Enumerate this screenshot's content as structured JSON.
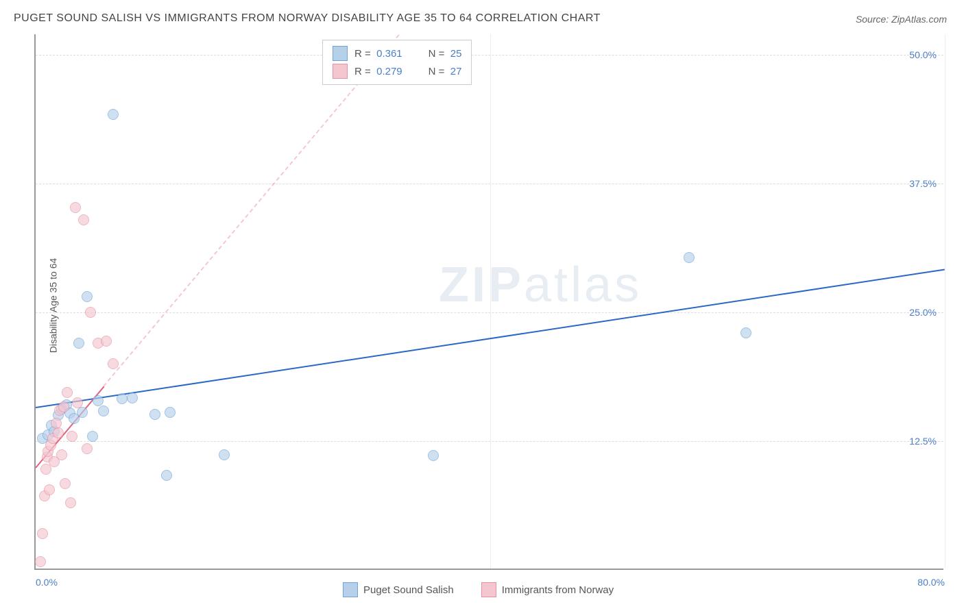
{
  "title": "PUGET SOUND SALISH VS IMMIGRANTS FROM NORWAY DISABILITY AGE 35 TO 64 CORRELATION CHART",
  "source": "Source: ZipAtlas.com",
  "y_axis_label": "Disability Age 35 to 64",
  "watermark_a": "ZIP",
  "watermark_b": "atlas",
  "chart": {
    "type": "scatter",
    "xlim": [
      0,
      80
    ],
    "ylim": [
      0,
      52
    ],
    "x_ticks": [
      0,
      80
    ],
    "x_tick_labels": [
      "0.0%",
      "80.0%"
    ],
    "y_ticks": [
      12.5,
      25.0,
      37.5,
      50.0
    ],
    "y_tick_labels": [
      "12.5%",
      "25.0%",
      "37.5%",
      "50.0%"
    ],
    "x_gridlines": [
      40,
      80
    ],
    "background_color": "#ffffff",
    "grid_color": "#dddddd",
    "axis_color": "#999999",
    "label_fontsize": 14,
    "title_fontsize": 16,
    "series": [
      {
        "name": "Puget Sound Salish",
        "marker_fill": "#b6d0ea",
        "marker_stroke": "#6fa3d9",
        "line_color": "#2968c5",
        "r": "0.361",
        "n": "25",
        "points": [
          [
            0.6,
            12.8
          ],
          [
            1.1,
            13.1
          ],
          [
            1.4,
            14.0
          ],
          [
            1.6,
            13.4
          ],
          [
            2.0,
            15.0
          ],
          [
            2.3,
            15.6
          ],
          [
            2.7,
            16.0
          ],
          [
            3.0,
            15.2
          ],
          [
            3.4,
            14.7
          ],
          [
            3.8,
            22.0
          ],
          [
            4.1,
            15.3
          ],
          [
            4.5,
            26.5
          ],
          [
            5.0,
            13.0
          ],
          [
            5.5,
            16.4
          ],
          [
            6.0,
            15.4
          ],
          [
            6.8,
            44.2
          ],
          [
            7.6,
            16.6
          ],
          [
            8.5,
            16.7
          ],
          [
            10.5,
            15.1
          ],
          [
            11.5,
            9.2
          ],
          [
            11.8,
            15.3
          ],
          [
            16.6,
            11.2
          ],
          [
            35.0,
            11.1
          ],
          [
            57.5,
            30.3
          ],
          [
            62.5,
            23.0
          ]
        ],
        "regression": {
          "x1": 0,
          "y1": 15.8,
          "x2": 80,
          "y2": 29.2,
          "dashed": false
        }
      },
      {
        "name": "Immigrants from Norway",
        "marker_fill": "#f4c7d0",
        "marker_stroke": "#e690a1",
        "line_color": "#e06280",
        "r": "0.279",
        "n": "27",
        "points": [
          [
            0.4,
            0.8
          ],
          [
            0.6,
            3.5
          ],
          [
            0.8,
            7.2
          ],
          [
            0.9,
            9.8
          ],
          [
            1.0,
            11.0
          ],
          [
            1.1,
            11.5
          ],
          [
            1.2,
            7.8
          ],
          [
            1.3,
            12.1
          ],
          [
            1.5,
            12.8
          ],
          [
            1.6,
            10.5
          ],
          [
            1.8,
            14.2
          ],
          [
            2.0,
            13.3
          ],
          [
            2.1,
            15.5
          ],
          [
            2.3,
            11.2
          ],
          [
            2.5,
            15.8
          ],
          [
            2.6,
            8.4
          ],
          [
            2.8,
            17.2
          ],
          [
            3.1,
            6.5
          ],
          [
            3.2,
            13.0
          ],
          [
            3.5,
            35.2
          ],
          [
            3.7,
            16.2
          ],
          [
            4.2,
            34.0
          ],
          [
            4.5,
            11.8
          ],
          [
            4.8,
            25.0
          ],
          [
            5.5,
            22.0
          ],
          [
            6.2,
            22.2
          ],
          [
            6.8,
            20.0
          ]
        ],
        "regression": {
          "x1": 0,
          "y1": 10.0,
          "x2": 32,
          "y2": 52.0,
          "dashed_from_x": 6.0
        }
      }
    ]
  },
  "legend_top": {
    "rows": [
      {
        "swatch_fill": "#b6d0ea",
        "swatch_stroke": "#6fa3d9",
        "r_label": "R = ",
        "r_val": "0.361",
        "n_label": "N = ",
        "n_val": "25"
      },
      {
        "swatch_fill": "#f4c7d0",
        "swatch_stroke": "#e690a1",
        "r_label": "R = ",
        "r_val": "0.279",
        "n_label": "N = ",
        "n_val": "27"
      }
    ]
  },
  "legend_bottom": {
    "items": [
      {
        "swatch_fill": "#b6d0ea",
        "swatch_stroke": "#6fa3d9",
        "label": "Puget Sound Salish"
      },
      {
        "swatch_fill": "#f4c7d0",
        "swatch_stroke": "#e690a1",
        "label": "Immigrants from Norway"
      }
    ]
  }
}
